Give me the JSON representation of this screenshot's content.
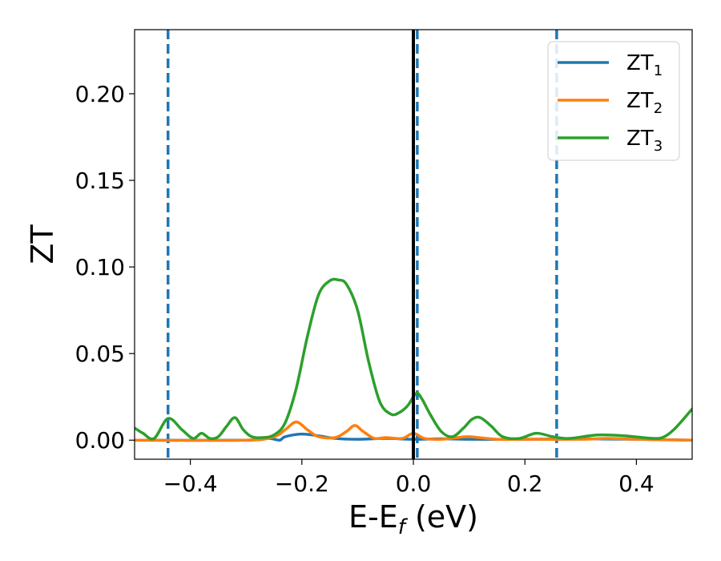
{
  "chart_data": {
    "type": "line",
    "xlabel": {
      "main": "E-E",
      "sub": "f",
      "unit": " (eV)"
    },
    "ylabel": "ZT",
    "xlim": [
      -0.5,
      0.5
    ],
    "ylim": [
      -0.011,
      0.237
    ],
    "xticks": [
      -0.4,
      -0.2,
      0.0,
      0.2,
      0.4
    ],
    "xtick_labels": [
      "−0.4",
      "−0.2",
      "0.0",
      "0.2",
      "0.4"
    ],
    "yticks": [
      0.0,
      0.05,
      0.1,
      0.15,
      0.2
    ],
    "ytick_labels": [
      "0.00",
      "0.05",
      "0.10",
      "0.15",
      "0.20"
    ],
    "grid": false,
    "legend_position": "top-right",
    "vlines": [
      {
        "x": -0.44,
        "style": "dashed",
        "color": "#1f77b4"
      },
      {
        "x": 0.007,
        "style": "dashed",
        "color": "#1f77b4"
      },
      {
        "x": 0.257,
        "style": "dashed",
        "color": "#1f77b4"
      },
      {
        "x": 0.0,
        "style": "solid",
        "color": "#000000"
      }
    ],
    "series": [
      {
        "name": "ZT",
        "name_sub": "1",
        "color": "#1f77b4",
        "x": [
          -0.5,
          -0.3,
          -0.26,
          -0.24,
          -0.23,
          -0.2,
          -0.17,
          -0.14,
          -0.1,
          -0.05,
          0.0,
          0.05,
          0.1,
          0.2,
          0.3,
          0.4,
          0.5
        ],
        "y": [
          0.0,
          0.0,
          0.001,
          0.0,
          0.002,
          0.0035,
          0.0025,
          0.001,
          0.0005,
          0.001,
          0.0005,
          0.0008,
          0.0005,
          0.0005,
          0.0008,
          0.0005,
          0.0
        ]
      },
      {
        "name": "ZT",
        "name_sub": "2",
        "color": "#ff7f0e",
        "x": [
          -0.5,
          -0.3,
          -0.25,
          -0.23,
          -0.21,
          -0.19,
          -0.17,
          -0.14,
          -0.12,
          -0.105,
          -0.09,
          -0.07,
          -0.05,
          -0.02,
          0.0,
          0.02,
          0.05,
          0.08,
          0.1,
          0.15,
          0.2,
          0.3,
          0.35,
          0.4,
          0.5
        ],
        "y": [
          0.0,
          0.0,
          0.002,
          0.006,
          0.0105,
          0.006,
          0.002,
          0.0015,
          0.005,
          0.0085,
          0.005,
          0.001,
          0.0015,
          0.001,
          0.004,
          0.001,
          0.0005,
          0.0015,
          0.002,
          0.0005,
          0.0005,
          0.0005,
          0.001,
          0.0005,
          0.0
        ]
      },
      {
        "name": "ZT",
        "name_sub": "3",
        "color": "#2ca02c",
        "x": [
          -0.5,
          -0.485,
          -0.465,
          -0.44,
          -0.415,
          -0.395,
          -0.38,
          -0.365,
          -0.35,
          -0.335,
          -0.32,
          -0.305,
          -0.29,
          -0.27,
          -0.25,
          -0.23,
          -0.21,
          -0.19,
          -0.17,
          -0.15,
          -0.135,
          -0.12,
          -0.1,
          -0.08,
          -0.06,
          -0.04,
          -0.025,
          -0.01,
          0.005,
          0.015,
          0.03,
          0.05,
          0.07,
          0.09,
          0.105,
          0.12,
          0.14,
          0.16,
          0.19,
          0.22,
          0.25,
          0.28,
          0.33,
          0.38,
          0.43,
          0.45,
          0.47,
          0.5
        ],
        "y": [
          0.007,
          0.004,
          0.001,
          0.0125,
          0.006,
          0.001,
          0.004,
          0.001,
          0.002,
          0.008,
          0.013,
          0.006,
          0.002,
          0.0015,
          0.003,
          0.01,
          0.03,
          0.06,
          0.084,
          0.092,
          0.0925,
          0.09,
          0.075,
          0.045,
          0.022,
          0.015,
          0.016,
          0.02,
          0.027,
          0.024,
          0.015,
          0.005,
          0.002,
          0.007,
          0.012,
          0.013,
          0.008,
          0.002,
          0.001,
          0.004,
          0.002,
          0.001,
          0.003,
          0.0025,
          0.001,
          0.002,
          0.007,
          0.018
        ]
      }
    ]
  }
}
